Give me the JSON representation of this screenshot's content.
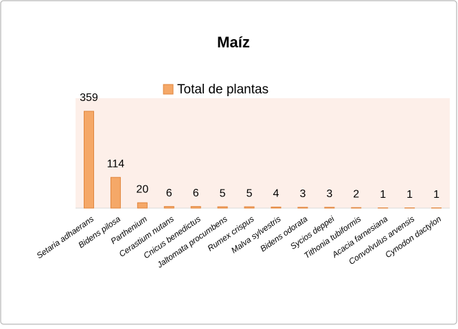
{
  "chart_data": {
    "type": "bar",
    "title": "Maíz",
    "categories": [
      "Setaria adhaerans",
      "Bidens pilosa",
      "Parthenium",
      "Cerastium nutans",
      "Cnicus benedictus",
      "Jaltomata procumbens",
      "Rumex crispus",
      "Malva sylvestris",
      "Bidens odorata",
      "Sycios deppei",
      "Tithonia tubiformis",
      "Acacia farnesiana",
      "Convolvulus arvensis",
      "Cynodon dactylon"
    ],
    "series": [
      {
        "name": "Total de plantas",
        "color": "#f5a868",
        "values": [
          359,
          114,
          20,
          6,
          6,
          5,
          5,
          4,
          3,
          3,
          2,
          1,
          1,
          1
        ]
      }
    ]
  }
}
